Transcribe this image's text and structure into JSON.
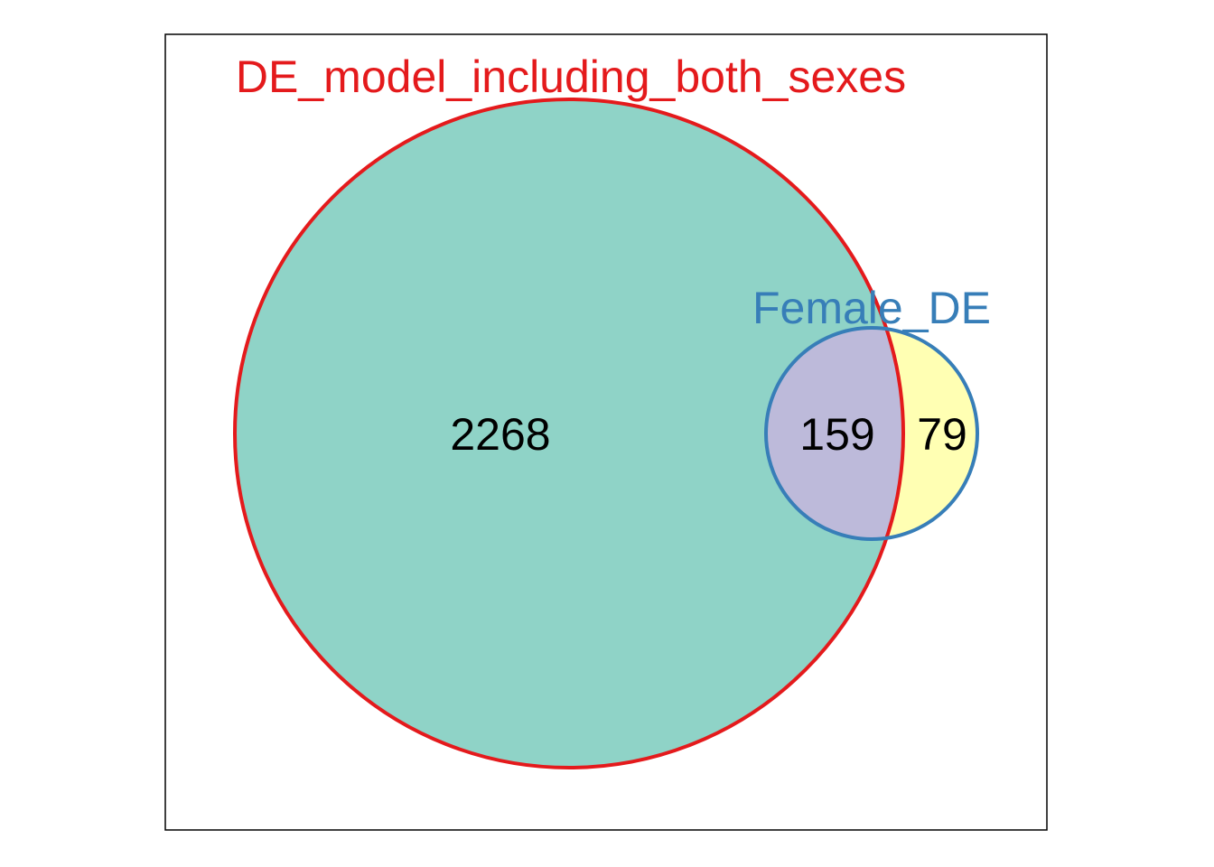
{
  "colors": {
    "set_a_fill": "#8FD3C7",
    "set_a_stroke": "#E41A1C",
    "set_b_fill": "#FFFFB3",
    "set_b_stroke": "#377EB8",
    "intersection_fill": "#BDBADA",
    "frame": "#000000",
    "count_text": "#000000"
  },
  "sets": [
    {
      "name": "DE_model_including_both_sexes",
      "color": "#E41A1C"
    },
    {
      "name": "Female_DE",
      "color": "#377EB8"
    }
  ],
  "regions": {
    "only_DE_model_including_both_sexes": "2268",
    "intersection": "159",
    "only_Female_DE": "79"
  }
}
